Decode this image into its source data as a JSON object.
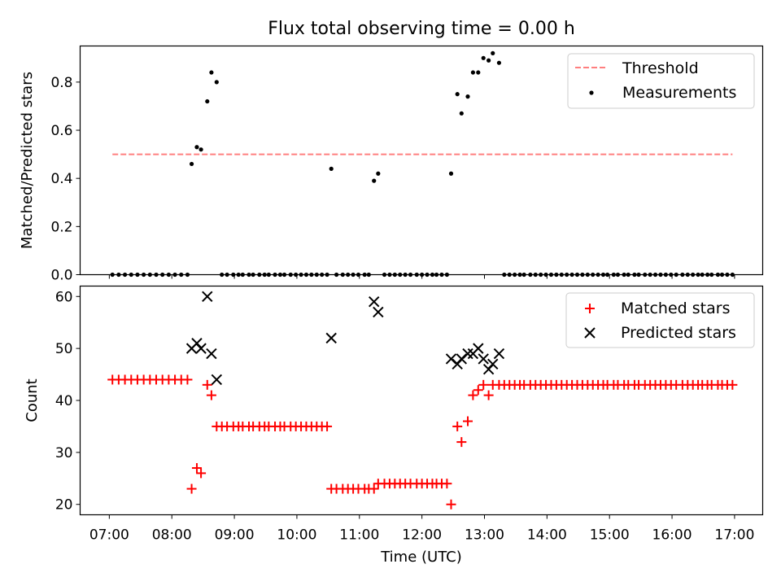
{
  "chart_data": [
    {
      "type": "scatter",
      "title": "Flux total observing time = 0.00 h",
      "xlabel": "",
      "ylabel": "Matched/Predicted stars",
      "xlim": [
        "06:32",
        "17:27"
      ],
      "ylim": [
        0,
        0.95
      ],
      "yticks": [
        0.0,
        0.2,
        0.4,
        0.6,
        0.8
      ],
      "ytick_labels": [
        "0.0",
        "0.2",
        "0.4",
        "0.6",
        "0.8"
      ],
      "legend": {
        "position": "top-right",
        "entries": [
          "Threshold",
          "Measurements"
        ]
      },
      "series": [
        {
          "name": "Threshold",
          "kind": "dashed-line",
          "color": "#ff7f7f",
          "x": [
            "07:03",
            "16:58"
          ],
          "y": [
            0.5,
            0.5
          ]
        },
        {
          "name": "Measurements",
          "kind": "dots",
          "color": "#000000",
          "x": [
            "07:03",
            "07:09",
            "07:15",
            "07:21",
            "07:27",
            "07:33",
            "07:39",
            "07:45",
            "07:51",
            "07:57",
            "08:03",
            "08:09",
            "08:15",
            "08:19",
            "08:24",
            "08:28",
            "08:34",
            "08:38",
            "08:43",
            "08:48",
            "08:53",
            "08:59",
            "09:04",
            "09:08",
            "09:14",
            "09:18",
            "09:24",
            "09:29",
            "09:33",
            "09:39",
            "09:44",
            "09:48",
            "09:54",
            "09:59",
            "10:04",
            "10:09",
            "10:14",
            "10:19",
            "10:24",
            "10:29",
            "10:33",
            "10:38",
            "10:44",
            "10:49",
            "10:54",
            "10:59",
            "11:05",
            "11:09",
            "11:14",
            "11:18",
            "11:24",
            "11:29",
            "11:34",
            "11:39",
            "11:44",
            "11:49",
            "11:55",
            "12:00",
            "12:05",
            "12:10",
            "12:14",
            "12:19",
            "12:24",
            "12:28",
            "12:34",
            "12:38",
            "12:44",
            "12:49",
            "12:54",
            "12:59",
            "13:04",
            "13:08",
            "13:14",
            "13:19",
            "13:24",
            "13:29",
            "13:34",
            "13:38",
            "13:44",
            "13:49",
            "13:54",
            "13:59",
            "14:04",
            "14:09",
            "14:14",
            "14:19",
            "14:24",
            "14:29",
            "14:34",
            "14:39",
            "14:44",
            "14:49",
            "14:54",
            "14:58",
            "15:04",
            "15:08",
            "15:14",
            "15:18",
            "15:24",
            "15:28",
            "15:34",
            "15:39",
            "15:44",
            "15:49",
            "15:54",
            "15:59",
            "16:04",
            "16:10",
            "16:15",
            "16:20",
            "16:25",
            "16:29",
            "16:34",
            "16:38",
            "16:44",
            "16:48",
            "16:53",
            "16:58"
          ],
          "y": [
            0,
            0,
            0,
            0,
            0,
            0,
            0,
            0,
            0,
            0,
            0,
            0,
            0,
            0.46,
            0.53,
            0.52,
            0.72,
            0.84,
            0.8,
            0,
            0,
            0,
            0,
            0,
            0,
            0,
            0,
            0,
            0,
            0,
            0,
            0,
            0,
            0,
            0,
            0,
            0,
            0,
            0,
            0,
            0.44,
            0,
            0,
            0,
            0,
            0,
            0,
            0,
            0.39,
            0.42,
            0,
            0,
            0,
            0,
            0,
            0,
            0,
            0,
            0,
            0,
            0,
            0,
            0,
            0.42,
            0.75,
            0.67,
            0.74,
            0.84,
            0.84,
            0.9,
            0.89,
            0.92,
            0.88,
            0,
            0,
            0,
            0,
            0,
            0,
            0,
            0,
            0,
            0,
            0,
            0,
            0,
            0,
            0,
            0,
            0,
            0,
            0,
            0,
            0,
            0,
            0,
            0,
            0,
            0,
            0,
            0,
            0,
            0,
            0,
            0,
            0,
            0,
            0,
            0,
            0,
            0,
            0,
            0,
            0,
            0,
            0,
            0,
            0
          ]
        }
      ]
    },
    {
      "type": "scatter",
      "title": "",
      "xlabel": "Time (UTC)",
      "ylabel": "Count",
      "xlim": [
        "06:32",
        "17:27"
      ],
      "ylim": [
        18,
        62
      ],
      "yticks": [
        20,
        30,
        40,
        50,
        60
      ],
      "ytick_labels": [
        "20",
        "30",
        "40",
        "50",
        "60"
      ],
      "xticks": [
        "07:00",
        "08:00",
        "09:00",
        "10:00",
        "11:00",
        "12:00",
        "13:00",
        "14:00",
        "15:00",
        "16:00",
        "17:00"
      ],
      "legend": {
        "position": "top-right",
        "entries": [
          "Matched stars",
          "Predicted stars"
        ]
      },
      "series": [
        {
          "name": "Matched stars",
          "kind": "plus",
          "color": "#ff0000",
          "x": [
            "07:03",
            "07:09",
            "07:15",
            "07:21",
            "07:27",
            "07:33",
            "07:39",
            "07:45",
            "07:51",
            "07:57",
            "08:03",
            "08:09",
            "08:15",
            "08:19",
            "08:24",
            "08:28",
            "08:34",
            "08:38",
            "08:43",
            "08:48",
            "08:53",
            "08:59",
            "09:04",
            "09:08",
            "09:14",
            "09:18",
            "09:24",
            "09:29",
            "09:33",
            "09:39",
            "09:44",
            "09:48",
            "09:54",
            "09:59",
            "10:04",
            "10:09",
            "10:14",
            "10:19",
            "10:24",
            "10:29",
            "10:33",
            "10:38",
            "10:44",
            "10:49",
            "10:54",
            "10:59",
            "11:05",
            "11:09",
            "11:14",
            "11:18",
            "11:24",
            "11:29",
            "11:34",
            "11:39",
            "11:44",
            "11:49",
            "11:55",
            "12:00",
            "12:05",
            "12:10",
            "12:14",
            "12:19",
            "12:24",
            "12:28",
            "12:34",
            "12:38",
            "12:44",
            "12:49",
            "12:54",
            "12:59",
            "13:04",
            "13:08",
            "13:14",
            "13:19",
            "13:24",
            "13:29",
            "13:34",
            "13:38",
            "13:44",
            "13:49",
            "13:54",
            "13:59",
            "14:04",
            "14:09",
            "14:14",
            "14:19",
            "14:24",
            "14:29",
            "14:34",
            "14:39",
            "14:44",
            "14:49",
            "14:54",
            "14:58",
            "15:04",
            "15:08",
            "15:14",
            "15:18",
            "15:24",
            "15:28",
            "15:34",
            "15:39",
            "15:44",
            "15:49",
            "15:54",
            "15:59",
            "16:04",
            "16:10",
            "16:15",
            "16:20",
            "16:25",
            "16:29",
            "16:34",
            "16:38",
            "16:44",
            "16:48",
            "16:53",
            "16:58"
          ],
          "y": [
            44,
            44,
            44,
            44,
            44,
            44,
            44,
            44,
            44,
            44,
            44,
            44,
            44,
            23,
            27,
            26,
            43,
            41,
            35,
            35,
            35,
            35,
            35,
            35,
            35,
            35,
            35,
            35,
            35,
            35,
            35,
            35,
            35,
            35,
            35,
            35,
            35,
            35,
            35,
            35,
            23,
            23,
            23,
            23,
            23,
            23,
            23,
            23,
            23,
            24,
            24,
            24,
            24,
            24,
            24,
            24,
            24,
            24,
            24,
            24,
            24,
            24,
            24,
            20,
            35,
            32,
            36,
            41,
            42,
            43,
            41,
            43,
            43,
            43,
            43,
            43,
            43,
            43,
            43,
            43,
            43,
            43,
            43,
            43,
            43,
            43,
            43,
            43,
            43,
            43,
            43,
            43,
            43,
            43,
            43,
            43,
            43,
            43,
            43,
            43,
            43,
            43,
            43,
            43,
            43,
            43,
            43,
            43,
            43,
            43,
            43,
            43,
            43,
            43,
            43,
            43,
            43,
            43
          ]
        },
        {
          "name": "Predicted stars",
          "kind": "cross",
          "color": "#000000",
          "x": [
            "08:19",
            "08:24",
            "08:28",
            "08:34",
            "08:38",
            "08:43",
            "10:33",
            "11:14",
            "11:18",
            "12:28",
            "12:34",
            "12:38",
            "12:44",
            "12:49",
            "12:54",
            "12:59",
            "13:04",
            "13:08",
            "13:14"
          ],
          "y": [
            50,
            51,
            50,
            60,
            49,
            44,
            52,
            59,
            57,
            48,
            47,
            48,
            49,
            49,
            50,
            48,
            46,
            47,
            49
          ]
        }
      ]
    }
  ]
}
